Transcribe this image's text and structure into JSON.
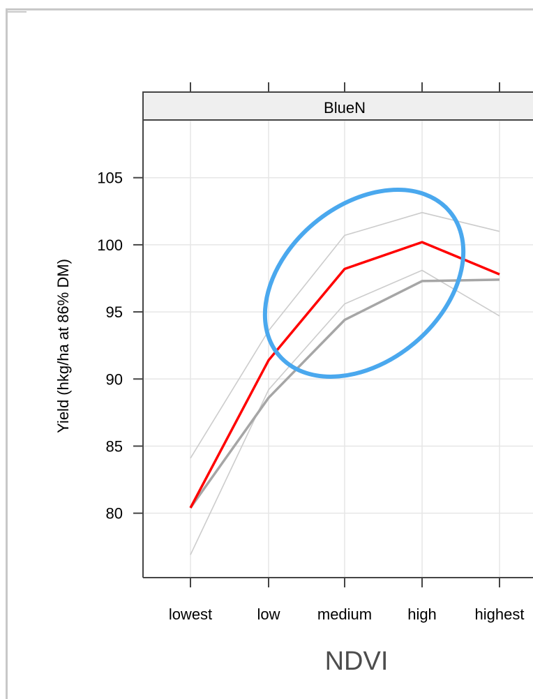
{
  "chart_data": {
    "type": "line",
    "panel_title": "BlueN",
    "xlabel": "NDVI",
    "ylabel": "Yield (hkg/ha at 86% DM)",
    "categories": [
      "lowest",
      "low",
      "medium",
      "high",
      "highest"
    ],
    "y_ticks": [
      80,
      85,
      90,
      95,
      100,
      105
    ],
    "ylim": [
      75.2,
      109.3
    ],
    "grid": true,
    "series": [
      {
        "role": "fitted",
        "values": [
          80.4,
          91.4,
          98.2,
          100.2,
          97.8
        ],
        "color": "#ff0000"
      },
      {
        "role": "reference",
        "values": [
          80.4,
          88.6,
          94.4,
          97.3,
          97.4
        ],
        "color": "#a6a6a6"
      },
      {
        "role": "upper-bound",
        "values": [
          84.1,
          93.6,
          100.7,
          102.4,
          101.0
        ],
        "color": "#cccccc"
      },
      {
        "role": "lower-bound",
        "values": [
          76.9,
          89.2,
          95.6,
          98.1,
          94.7
        ],
        "color": "#cccccc"
      }
    ],
    "annotation": {
      "shape": "ellipse",
      "color": "#4aa8ee"
    }
  }
}
